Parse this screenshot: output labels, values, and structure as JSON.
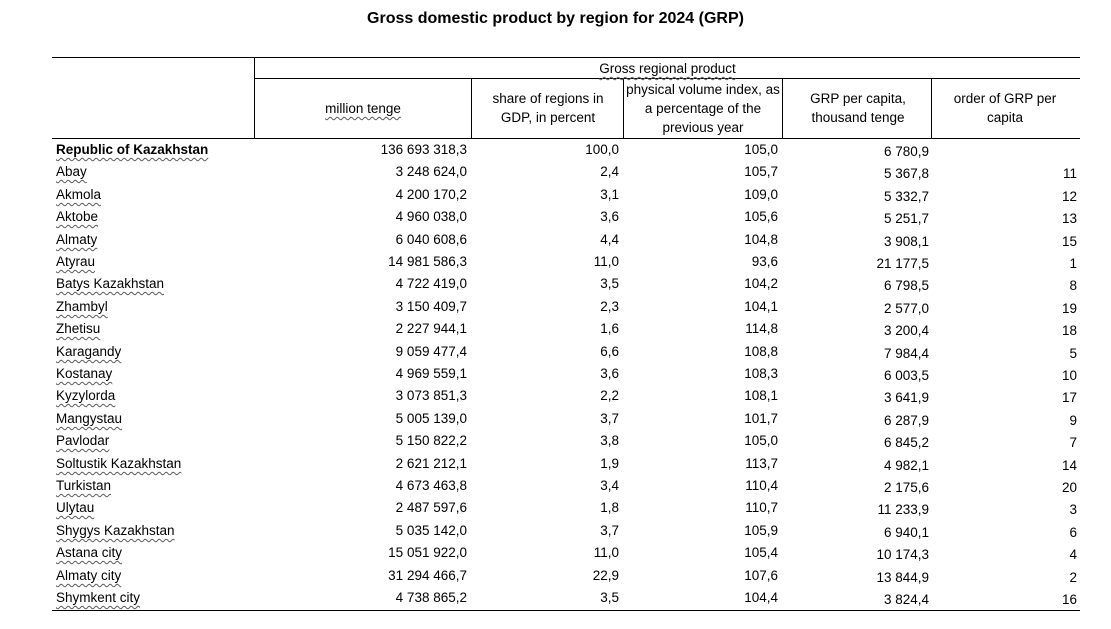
{
  "title": "Gross domestic product by region for 2024 (GRP)",
  "header": {
    "group": "Gross regional product",
    "col_million": "million tenge",
    "col_share": "share of regions in GDP, in percent",
    "col_volume": "physical volume index, as a percentage of the previous year",
    "col_percapita": "GRP per capita, thousand tenge",
    "col_order": "order of GRP per capita"
  },
  "rows": [
    {
      "region": "Republic of Kazakhstan",
      "million": "136 693 318,3",
      "share": "100,0",
      "volume": "105,0",
      "percapita": "6 780,9",
      "order": ""
    },
    {
      "region": "Abay",
      "million": "3 248 624,0",
      "share": "2,4",
      "volume": "105,7",
      "percapita": "5 367,8",
      "order": "11"
    },
    {
      "region": "Akmola",
      "million": "4 200 170,2",
      "share": "3,1",
      "volume": "109,0",
      "percapita": "5 332,7",
      "order": "12"
    },
    {
      "region": "Aktobe",
      "million": "4 960 038,0",
      "share": "3,6",
      "volume": "105,6",
      "percapita": "5 251,7",
      "order": "13"
    },
    {
      "region": "Almaty",
      "million": "6 040 608,6",
      "share": "4,4",
      "volume": "104,8",
      "percapita": "3 908,1",
      "order": "15"
    },
    {
      "region": "Atyrau",
      "million": "14 981 586,3",
      "share": "11,0",
      "volume": "93,6",
      "percapita": "21 177,5",
      "order": "1"
    },
    {
      "region": "Batys Kazakhstan",
      "million": "4 722 419,0",
      "share": "3,5",
      "volume": "104,2",
      "percapita": "6 798,5",
      "order": "8"
    },
    {
      "region": "Zhambyl",
      "million": "3 150 409,7",
      "share": "2,3",
      "volume": "104,1",
      "percapita": "2 577,0",
      "order": "19"
    },
    {
      "region": "Zhetisu",
      "million": "2 227 944,1",
      "share": "1,6",
      "volume": "114,8",
      "percapita": "3 200,4",
      "order": "18"
    },
    {
      "region": "Karagandy",
      "million": "9 059 477,4",
      "share": "6,6",
      "volume": "108,8",
      "percapita": "7 984,4",
      "order": "5"
    },
    {
      "region": "Kostanay",
      "million": "4 969 559,1",
      "share": "3,6",
      "volume": "108,3",
      "percapita": "6 003,5",
      "order": "10"
    },
    {
      "region": "Kyzylorda",
      "million": "3 073 851,3",
      "share": "2,2",
      "volume": "108,1",
      "percapita": "3 641,9",
      "order": "17"
    },
    {
      "region": "Mangystau",
      "million": "5 005 139,0",
      "share": "3,7",
      "volume": "101,7",
      "percapita": "6 287,9",
      "order": "9"
    },
    {
      "region": "Pavlodar",
      "million": "5 150 822,2",
      "share": "3,8",
      "volume": "105,0",
      "percapita": "6 845,2",
      "order": "7"
    },
    {
      "region": "Soltustik Kazakhstan",
      "million": "2 621 212,1",
      "share": "1,9",
      "volume": "113,7",
      "percapita": "4 982,1",
      "order": "14"
    },
    {
      "region": "Turkistan",
      "million": "4 673 463,8",
      "share": "3,4",
      "volume": "110,4",
      "percapita": "2 175,6",
      "order": "20"
    },
    {
      "region": "Ulytau",
      "million": "2 487 597,6",
      "share": "1,8",
      "volume": "110,7",
      "percapita": "11 233,9",
      "order": "3"
    },
    {
      "region": "Shygys Kazakhstan",
      "million": "5 035 142,0",
      "share": "3,7",
      "volume": "105,9",
      "percapita": "6 940,1",
      "order": "6"
    },
    {
      "region": "Astana city",
      "million": "15 051 922,0",
      "share": "11,0",
      "volume": "105,4",
      "percapita": "10 174,3",
      "order": "4"
    },
    {
      "region": "Almaty city",
      "million": "31 294 466,7",
      "share": "22,9",
      "volume": "107,6",
      "percapita": "13 844,9",
      "order": "2"
    },
    {
      "region": "Shymkent city",
      "million": "4 738 865,2",
      "share": "3,5",
      "volume": "104,4",
      "percapita": "3 824,4",
      "order": "16"
    }
  ]
}
